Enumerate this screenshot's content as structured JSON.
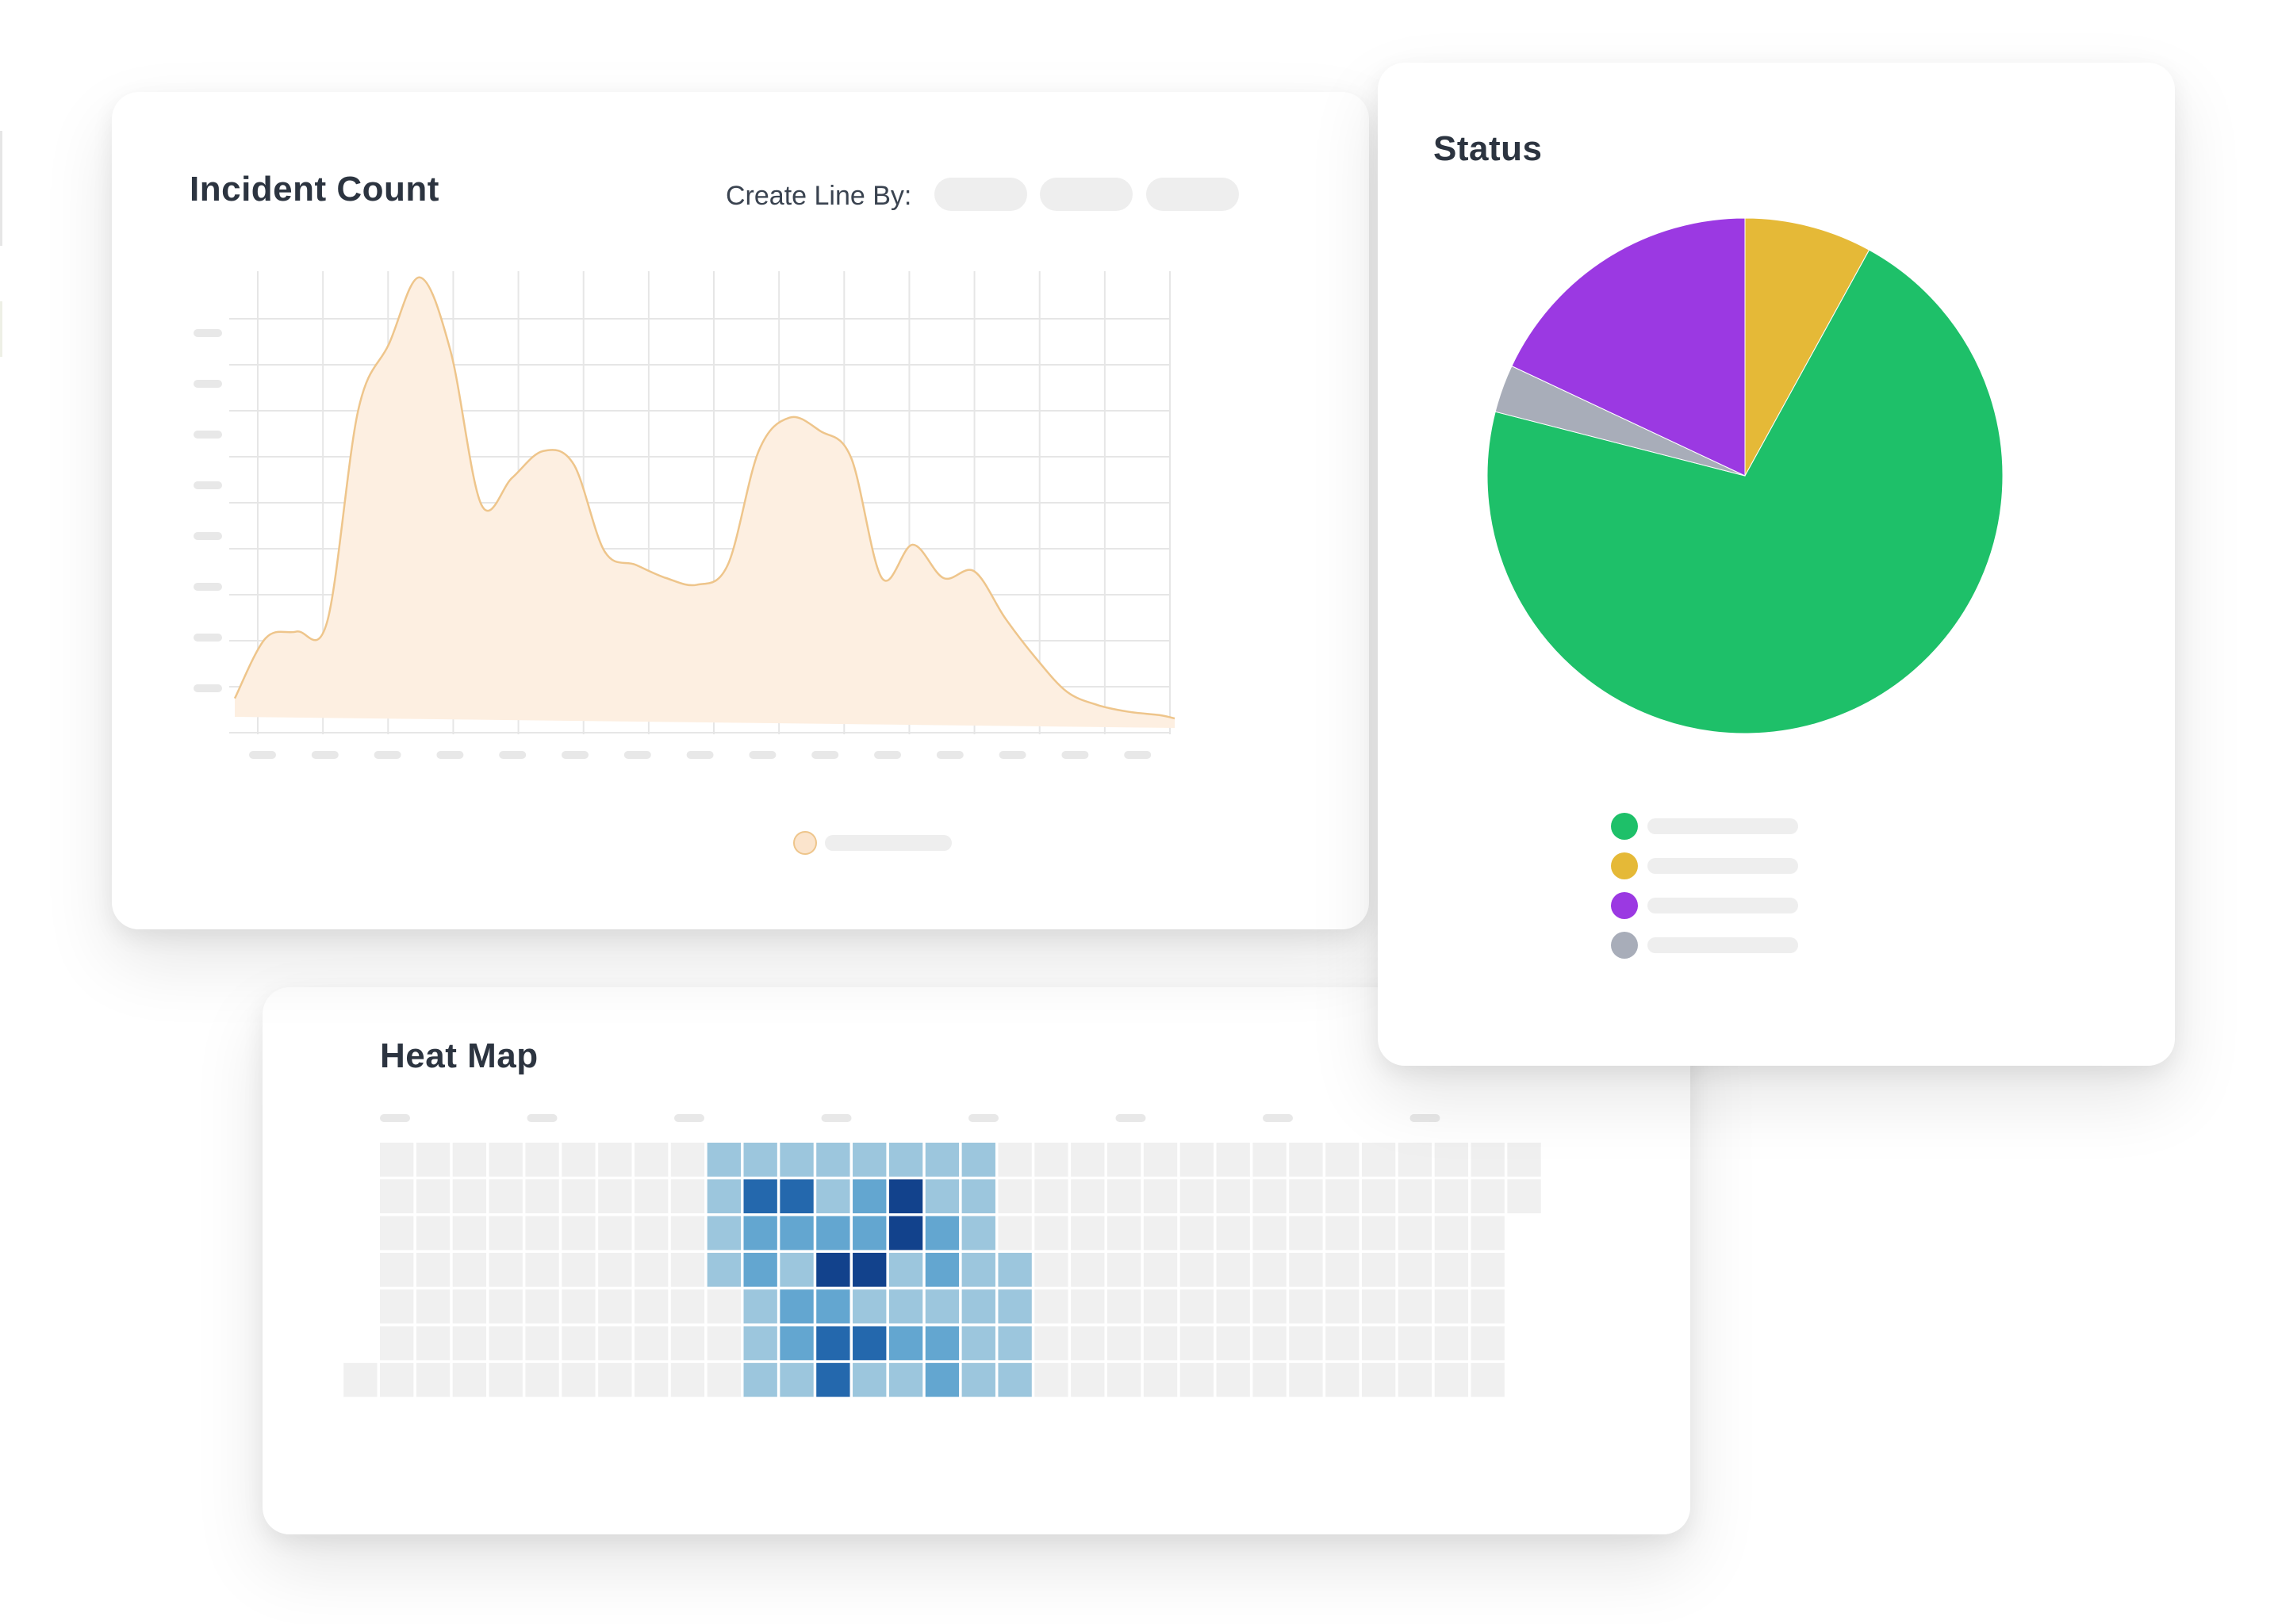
{
  "incident": {
    "title": "Incident Count",
    "create_line_label": "Create Line By:",
    "area_color": "#fdefe1",
    "line_color": "#eec58b"
  },
  "status": {
    "title": "Status",
    "legend_colors": [
      "#1ec069",
      "#e5b937",
      "#9b39e2",
      "#a8adb9"
    ]
  },
  "heatmap": {
    "title": "Heat Map",
    "palette": [
      "#f0f0f0",
      "#9cc6dd",
      "#63a6d0",
      "#2468ad",
      "#12428c"
    ]
  },
  "chart_data": [
    {
      "type": "area",
      "title": "Incident Count",
      "x": [
        0,
        0.5,
        1,
        1.5,
        2,
        2.5,
        3,
        3.5,
        4,
        4.5,
        5,
        5.5,
        6,
        6.5,
        7,
        7.5,
        8,
        8.5,
        9,
        9.5,
        10,
        10.5,
        11,
        11.5,
        12,
        12.5,
        13,
        13.5,
        14,
        14.5,
        15,
        15.25
      ],
      "values": [
        0.3,
        1.2,
        1.3,
        1.45,
        4.6,
        5.6,
        6.6,
        5.5,
        3.2,
        3.6,
        4.0,
        3.8,
        2.5,
        2.3,
        2.1,
        2.0,
        2.3,
        4.0,
        4.5,
        4.3,
        3.9,
        2.1,
        2.6,
        2.1,
        2.2,
        1.5,
        0.9,
        0.4,
        0.2,
        0.1,
        0.05,
        0
      ],
      "grid": true,
      "legend": "bottom"
    },
    {
      "type": "pie",
      "title": "Status",
      "values": [
        8,
        71,
        3,
        18
      ],
      "colors": [
        "#e5b937",
        "#1ec069",
        "#a8adb9",
        "#9b39e2"
      ],
      "legend": "bottom"
    },
    {
      "type": "heatmap",
      "title": "Heat Map",
      "columns": 33,
      "rows": 7,
      "values": [
        [
          0,
          0,
          0,
          0,
          0,
          0,
          0,
          0,
          0,
          1,
          1,
          1,
          1,
          1,
          1,
          1,
          1,
          0,
          0,
          0,
          0,
          0,
          0,
          0,
          0,
          0,
          0,
          0,
          0,
          0,
          0,
          0,
          0
        ],
        [
          0,
          0,
          0,
          0,
          0,
          0,
          0,
          0,
          0,
          1,
          3,
          3,
          1,
          2,
          4,
          1,
          1,
          0,
          0,
          0,
          0,
          0,
          0,
          0,
          0,
          0,
          0,
          0,
          0,
          0,
          0,
          0,
          0
        ],
        [
          0,
          0,
          0,
          0,
          0,
          0,
          0,
          0,
          0,
          1,
          2,
          2,
          2,
          2,
          4,
          2,
          1,
          0,
          0,
          0,
          0,
          0,
          0,
          0,
          0,
          0,
          0,
          0,
          0,
          0,
          0,
          0,
          0
        ],
        [
          0,
          0,
          0,
          0,
          0,
          0,
          0,
          0,
          0,
          1,
          2,
          1,
          4,
          4,
          1,
          2,
          1,
          1,
          0,
          0,
          0,
          0,
          0,
          0,
          0,
          0,
          0,
          0,
          0,
          0,
          0,
          0,
          0
        ],
        [
          0,
          0,
          0,
          0,
          0,
          0,
          0,
          0,
          0,
          0,
          1,
          2,
          2,
          1,
          1,
          1,
          1,
          1,
          0,
          0,
          0,
          0,
          0,
          0,
          0,
          0,
          0,
          0,
          0,
          0,
          0,
          0,
          0
        ],
        [
          0,
          0,
          0,
          0,
          0,
          0,
          0,
          0,
          0,
          0,
          1,
          2,
          3,
          3,
          2,
          2,
          1,
          1,
          0,
          0,
          0,
          0,
          0,
          0,
          0,
          0,
          0,
          0,
          0,
          0,
          0,
          0,
          0
        ],
        [
          0,
          0,
          0,
          0,
          0,
          0,
          0,
          0,
          0,
          0,
          1,
          1,
          3,
          1,
          1,
          2,
          1,
          1,
          0,
          0,
          0,
          0,
          0,
          0,
          0,
          0,
          0,
          0,
          0,
          0,
          0,
          0,
          0
        ]
      ]
    }
  ]
}
